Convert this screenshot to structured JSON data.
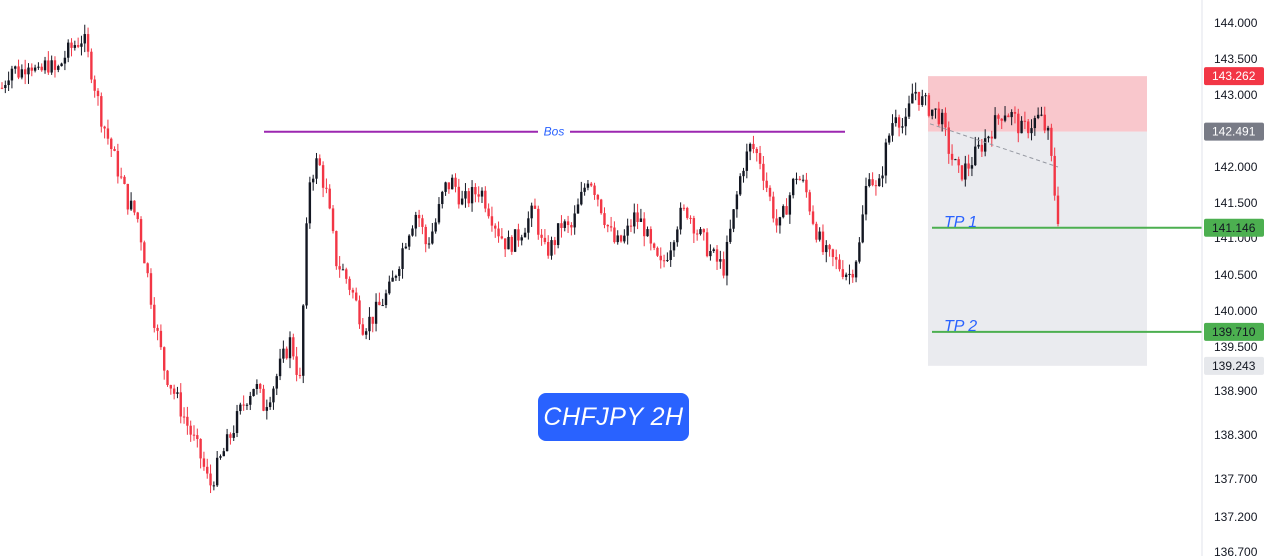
{
  "chart_data": {
    "type": "candlestick",
    "title": "CHFJPY 2H",
    "colors": {
      "up": "#131722",
      "down": "#f23645",
      "bos": "#9c27b0",
      "tp": "#4caf50",
      "stop_zone": "#f9c7cc",
      "profit_zone": "#e6e8ec",
      "entry_tag": "#787b86",
      "badge": "#2962ff"
    },
    "y_axis": {
      "range": [
        136.7,
        144.2
      ],
      "ticks": [
        "144.000",
        "143.500",
        "143.000",
        "142.000",
        "141.500",
        "141.000",
        "140.500",
        "140.000",
        "139.500",
        "138.900",
        "138.300",
        "137.700",
        "137.200",
        "136.700"
      ],
      "tick_values": [
        144.0,
        143.5,
        143.0,
        142.0,
        141.5,
        141.0,
        140.5,
        140.0,
        139.5,
        138.9,
        138.3,
        137.7,
        137.2,
        136.7
      ]
    },
    "price_tags": [
      {
        "label": "143.262",
        "value": 143.262,
        "kind": "stop"
      },
      {
        "label": "142.491",
        "value": 142.491,
        "kind": "entry"
      },
      {
        "label": "141.146",
        "value": 141.146,
        "kind": "tp"
      },
      {
        "label": "139.710",
        "value": 139.71,
        "kind": "tp"
      },
      {
        "label": "139.243",
        "value": 139.243,
        "kind": "target"
      }
    ],
    "annotations": [
      {
        "label": "Bos",
        "value": 142.49,
        "kind": "bos"
      },
      {
        "label": "TP 1",
        "value": 141.146,
        "kind": "tp"
      },
      {
        "label": "TP 2",
        "value": 139.71,
        "kind": "tp"
      }
    ],
    "position": {
      "entry": 142.491,
      "stop": 143.262,
      "target": 139.243
    },
    "close_path": [
      143.1,
      143.4,
      143.3,
      143.5,
      143.25,
      143.45,
      143.3,
      143.55,
      143.7,
      143.8,
      143.3,
      142.7,
      142.3,
      141.9,
      141.5,
      141.3,
      140.6,
      139.8,
      139.2,
      138.9,
      138.6,
      138.3,
      138.0,
      137.6,
      137.9,
      138.2,
      138.5,
      138.8,
      139.0,
      138.7,
      138.95,
      139.3,
      139.6,
      139.0,
      141.8,
      142.1,
      141.6,
      140.7,
      140.5,
      140.2,
      139.8,
      139.9,
      140.1,
      140.3,
      140.7,
      141.1,
      141.4,
      140.9,
      141.2,
      141.7,
      141.8,
      141.5,
      141.6,
      141.7,
      141.4,
      141.1,
      140.9,
      141.0,
      141.2,
      141.4,
      140.8,
      140.9,
      141.2,
      141.1,
      141.5,
      141.9,
      141.6,
      141.2,
      140.9,
      141.0,
      141.3,
      141.2,
      140.8,
      140.6,
      140.9,
      141.3,
      141.4,
      141.1,
      140.9,
      140.7,
      140.6,
      141.3,
      142.0,
      142.3,
      142.1,
      141.6,
      141.1,
      141.5,
      141.9,
      141.7,
      141.2,
      140.8,
      140.7,
      140.6,
      140.5,
      140.9,
      142.0,
      141.6,
      142.3,
      142.8,
      142.5,
      143.1,
      142.9,
      142.8,
      142.7,
      142.2,
      141.9,
      142.0,
      142.2,
      142.4,
      142.6,
      142.8,
      142.7,
      142.5,
      142.6,
      142.7,
      142.4,
      141.2
    ]
  }
}
